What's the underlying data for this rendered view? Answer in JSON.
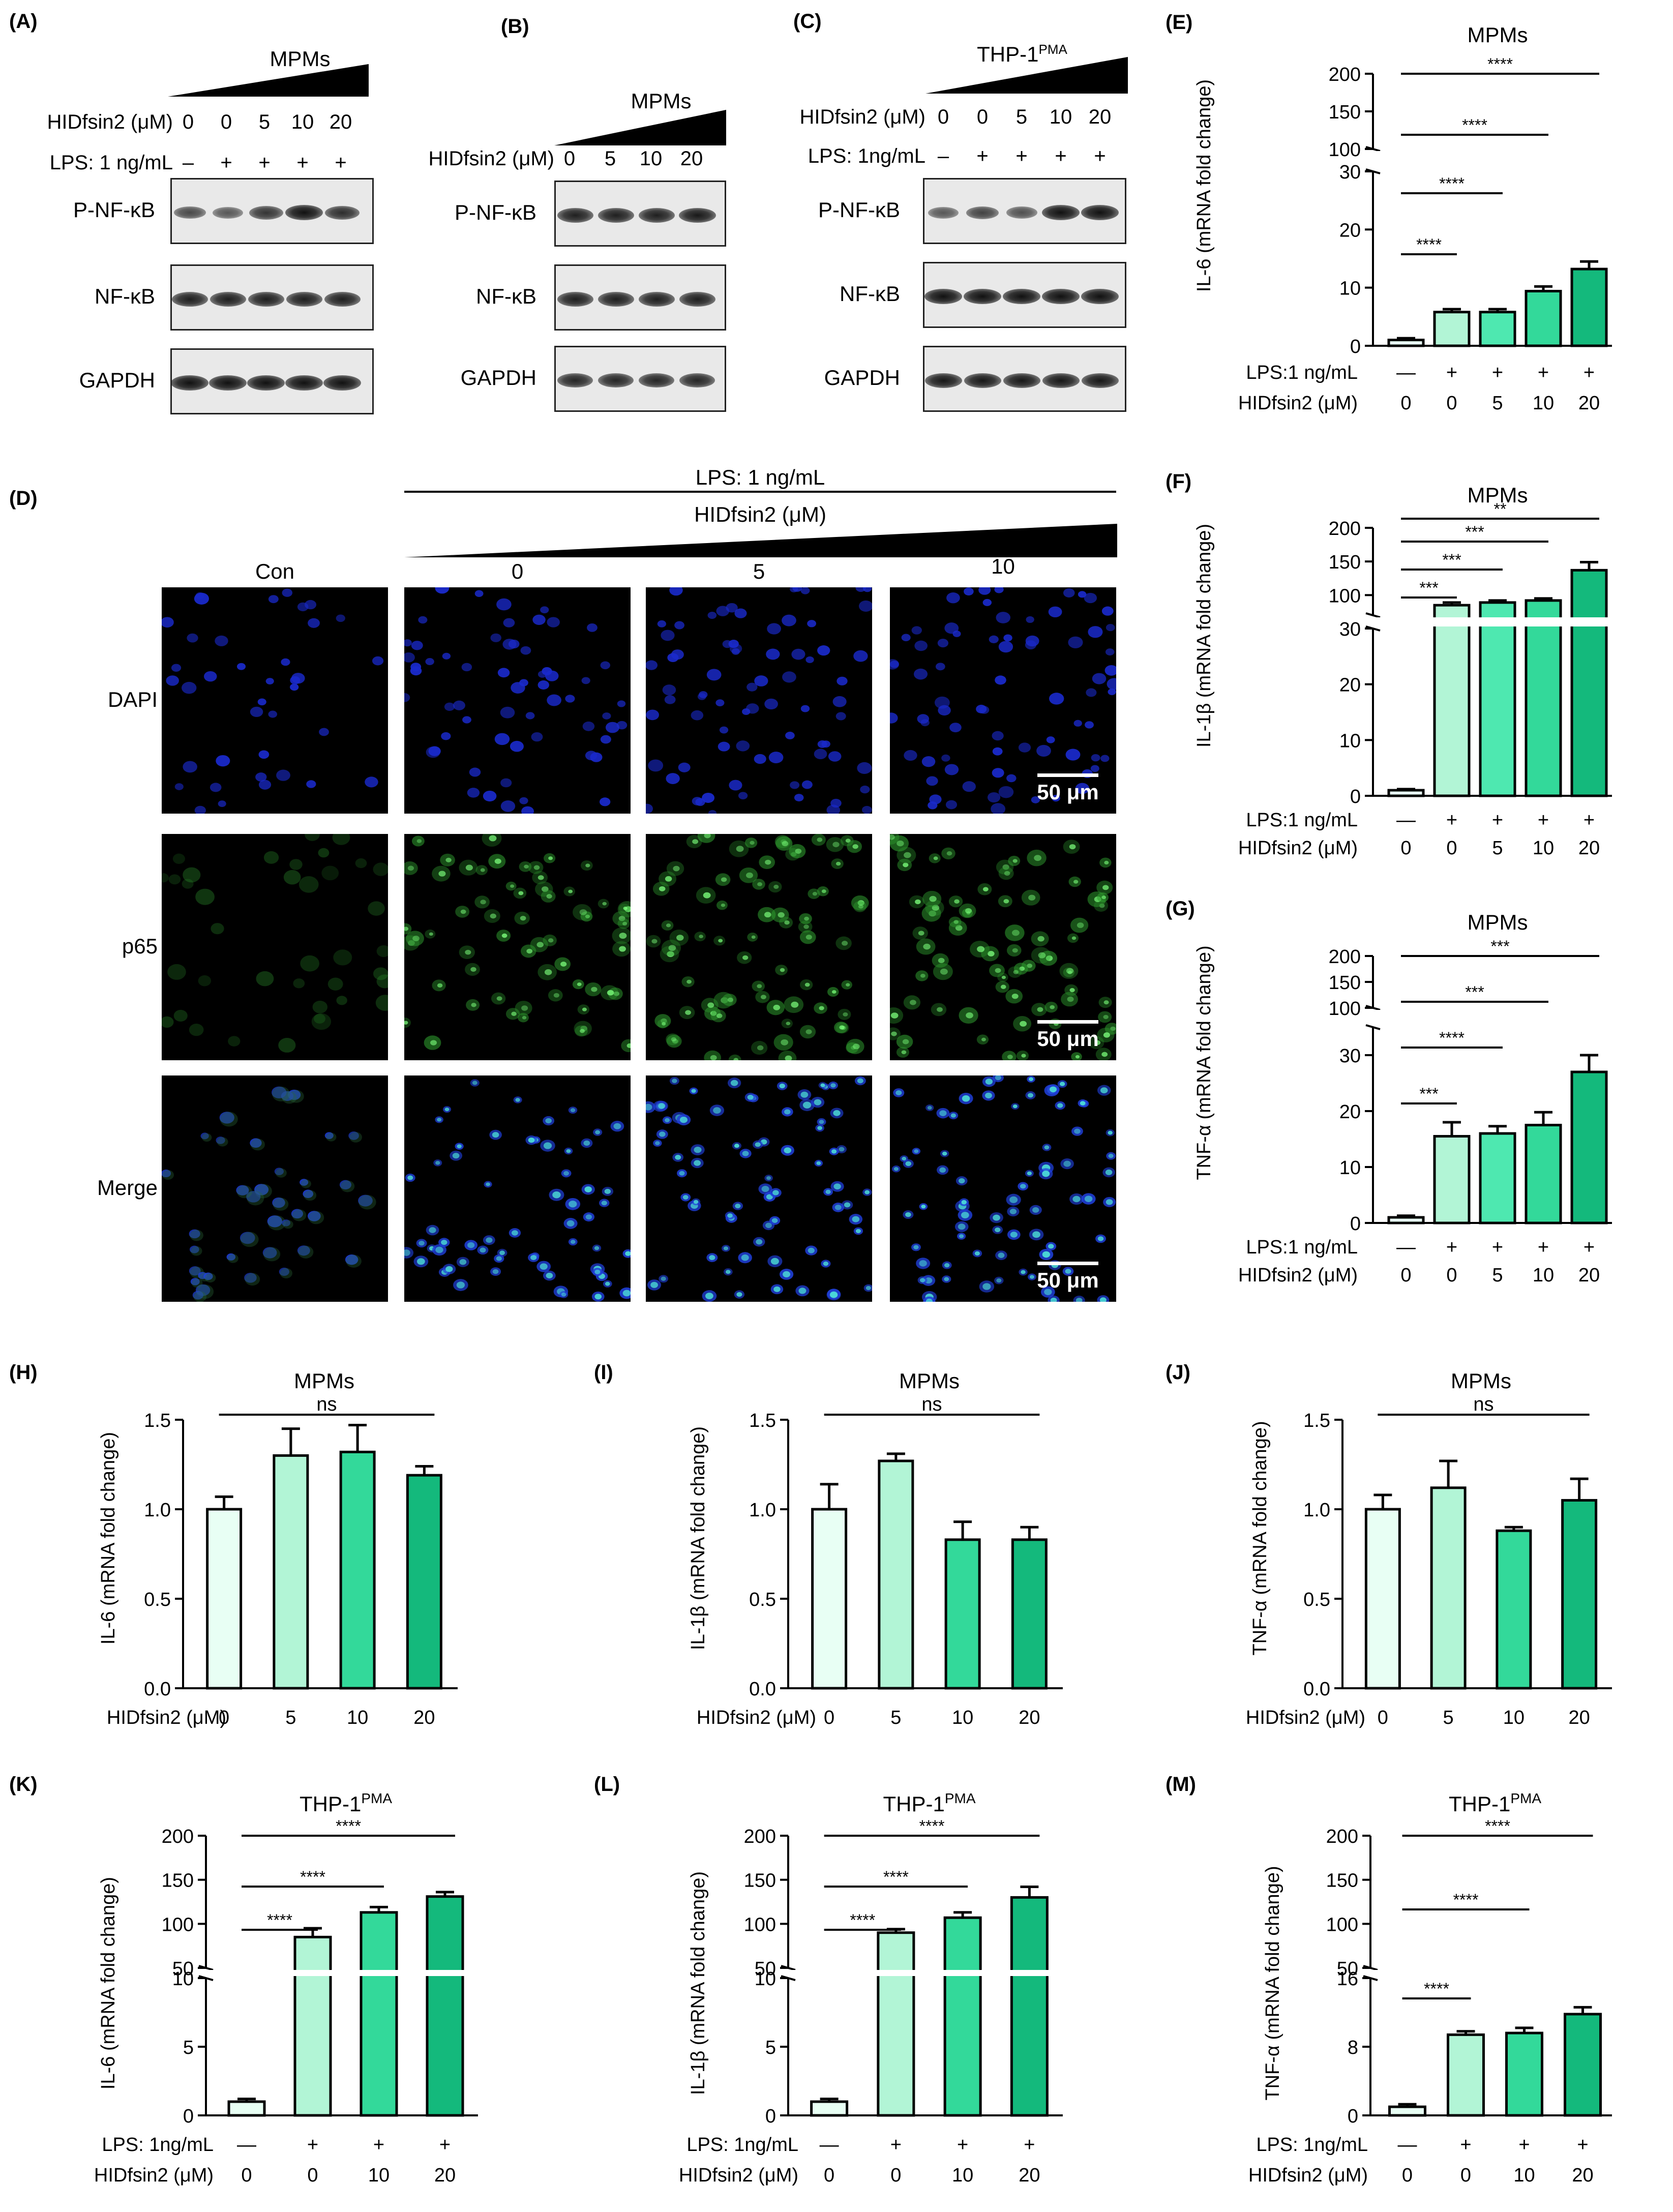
{
  "colors": {
    "c0": "#e8fff4",
    "c1": "#b2f5d6",
    "c2": "#4ee8b0",
    "c3": "#33d99a",
    "c4": "#14b97c",
    "c5": "#0fa56f"
  },
  "panelA": {
    "label": "(A)",
    "title": "MPMs",
    "row1_label": "HIDfsin2 (μM)",
    "row1_values": [
      "0",
      "0",
      "5",
      "10",
      "20"
    ],
    "row2_label": "LPS: 1 ng/mL",
    "row2_values": [
      "–",
      "+",
      "+",
      "+",
      "+"
    ],
    "blots": [
      {
        "name": "P-NF-κB",
        "intensity": [
          0.6,
          0.5,
          0.75,
          1.0,
          0.8
        ]
      },
      {
        "name": "NF-κB",
        "intensity": [
          0.9,
          0.9,
          0.9,
          0.9,
          0.9
        ]
      },
      {
        "name": "GAPDH",
        "intensity": [
          1,
          1,
          1,
          1,
          1
        ]
      }
    ]
  },
  "panelB": {
    "label": "(B)",
    "title": "MPMs",
    "row1_label": "HIDfsin2 (μM)",
    "row1_values": [
      "0",
      "5",
      "10",
      "20"
    ],
    "blots": [
      {
        "name": "P-NF-κB",
        "intensity": [
          0.9,
          0.9,
          0.9,
          0.95
        ]
      },
      {
        "name": "NF-κB",
        "intensity": [
          0.9,
          0.9,
          0.9,
          0.9
        ]
      },
      {
        "name": "GAPDH",
        "intensity": [
          0.85,
          0.85,
          0.85,
          0.85
        ]
      }
    ]
  },
  "panelC": {
    "label": "(C)",
    "title": "THP-1",
    "title_sup": "PMA",
    "row1_label": "HIDfsin2 (μM)",
    "row1_values": [
      "0",
      "0",
      "5",
      "10",
      "20"
    ],
    "row2_label": "LPS: 1ng/mL",
    "row2_values": [
      "–",
      "+",
      "+",
      "+",
      "+"
    ],
    "blots": [
      {
        "name": "P-NF-κB",
        "intensity": [
          0.5,
          0.65,
          0.55,
          1.0,
          1.0
        ]
      },
      {
        "name": "NF-κB",
        "intensity": [
          1,
          1,
          1,
          1,
          1
        ]
      },
      {
        "name": "GAPDH",
        "intensity": [
          0.95,
          0.95,
          0.95,
          0.95,
          0.95
        ]
      }
    ]
  },
  "panelD": {
    "label": "(D)",
    "lps_label": "LPS: 1 ng/mL",
    "hid_label": "HIDfsin2 (μM)",
    "columns": [
      "Con",
      "0",
      "5",
      "10"
    ],
    "rows": [
      "DAPI",
      "p65",
      "Merge"
    ],
    "scalebar": "50 μm"
  },
  "chart_data": [
    {
      "id": "E",
      "label": "(E)",
      "type": "bar",
      "title": "MPMs",
      "ylabel": "IL-6 (mRNA fold change)",
      "broken_axis": true,
      "lower_ylim": [
        0,
        30
      ],
      "lower_ticks": [
        0,
        10,
        20,
        30
      ],
      "upper_ylim": [
        100,
        200
      ],
      "upper_ticks": [
        100,
        150,
        200
      ],
      "row_labels": [
        "LPS:1 ng/mL",
        "HIDfsin2 (μM)"
      ],
      "rows": [
        [
          "—",
          "+",
          "+",
          "+",
          "+"
        ],
        [
          "0",
          "0",
          "5",
          "10",
          "20"
        ]
      ],
      "values": [
        1,
        5.8,
        5.8,
        9.4,
        13.2
      ],
      "errors": [
        0.3,
        0.5,
        0.5,
        0.8,
        1.3
      ],
      "significance": [
        {
          "from": 0,
          "to": 1,
          "text": "****"
        },
        {
          "from": 0,
          "to": 2,
          "text": "****"
        },
        {
          "from": 0,
          "to": 3,
          "text": "****"
        },
        {
          "from": 0,
          "to": 4,
          "text": "****"
        }
      ]
    },
    {
      "id": "F",
      "label": "(F)",
      "type": "bar",
      "title": "MPMs",
      "ylabel": "IL-1β (mRNA fold change)",
      "broken_axis": true,
      "lower_ylim": [
        0,
        30
      ],
      "lower_ticks": [
        0,
        10,
        20,
        30
      ],
      "upper_ylim": [
        70,
        200
      ],
      "upper_ticks": [
        100,
        150,
        200
      ],
      "row_labels": [
        "LPS:1 ng/mL",
        "HIDfsin2 (μM)"
      ],
      "rows": [
        [
          "—",
          "+",
          "+",
          "+",
          "+"
        ],
        [
          "0",
          "0",
          "5",
          "10",
          "20"
        ]
      ],
      "values": [
        1,
        85,
        89,
        92,
        137
      ],
      "errors": [
        0.2,
        4,
        3,
        3,
        12
      ],
      "significance": [
        {
          "from": 0,
          "to": 1,
          "text": "***"
        },
        {
          "from": 0,
          "to": 2,
          "text": "***"
        },
        {
          "from": 0,
          "to": 3,
          "text": "***"
        },
        {
          "from": 0,
          "to": 4,
          "text": "**"
        }
      ]
    },
    {
      "id": "G",
      "label": "(G)",
      "type": "bar",
      "title": "MPMs",
      "ylabel": "TNF-α (mRNA fold change)",
      "broken_axis": true,
      "lower_ylim": [
        0,
        35
      ],
      "lower_ticks": [
        0,
        10,
        20,
        30
      ],
      "upper_ylim": [
        100,
        200
      ],
      "upper_ticks": [
        100,
        150,
        200
      ],
      "row_labels": [
        "LPS:1 ng/mL",
        "HIDfsin2 (μM)"
      ],
      "rows": [
        [
          "—",
          "+",
          "+",
          "+",
          "+"
        ],
        [
          "0",
          "0",
          "5",
          "10",
          "20"
        ]
      ],
      "values": [
        1,
        15.5,
        16,
        17.5,
        27
      ],
      "errors": [
        0.3,
        2.5,
        1.3,
        2.3,
        3
      ],
      "significance": [
        {
          "from": 0,
          "to": 1,
          "text": "***"
        },
        {
          "from": 0,
          "to": 2,
          "text": "****"
        },
        {
          "from": 0,
          "to": 3,
          "text": "***"
        },
        {
          "from": 0,
          "to": 4,
          "text": "***"
        }
      ]
    },
    {
      "id": "H",
      "label": "(H)",
      "type": "bar",
      "title": "MPMs",
      "ylabel": "IL-6 (mRNA fold change)",
      "broken_axis": false,
      "ylim": [
        0,
        1.5
      ],
      "ticks": [
        "0.0",
        "0.5",
        "1.0",
        "1.5"
      ],
      "row_labels": [
        "HIDfsin2 (μM)"
      ],
      "rows": [
        [
          "0",
          "5",
          "10",
          "20"
        ]
      ],
      "values": [
        1.0,
        1.3,
        1.32,
        1.19
      ],
      "errors": [
        0.07,
        0.15,
        0.15,
        0.05
      ],
      "significance": [
        {
          "from": 0,
          "to": 3,
          "text": "ns"
        }
      ]
    },
    {
      "id": "I",
      "label": "(I)",
      "type": "bar",
      "title": "MPMs",
      "ylabel": "IL-1β (mRNA fold change)",
      "broken_axis": false,
      "ylim": [
        0,
        1.5
      ],
      "ticks": [
        "0.0",
        "0.5",
        "1.0",
        "1.5"
      ],
      "row_labels": [
        "HIDfsin2 (μM)"
      ],
      "rows": [
        [
          "0",
          "5",
          "10",
          "20"
        ]
      ],
      "values": [
        1.0,
        1.27,
        0.83,
        0.83
      ],
      "errors": [
        0.14,
        0.04,
        0.1,
        0.07
      ],
      "significance": [
        {
          "from": 0,
          "to": 3,
          "text": "ns"
        }
      ]
    },
    {
      "id": "J",
      "label": "(J)",
      "type": "bar",
      "title": "MPMs",
      "ylabel": "TNF-α (mRNA fold change)",
      "broken_axis": false,
      "ylim": [
        0,
        1.5
      ],
      "ticks": [
        "0.0",
        "0.5",
        "1.0",
        "1.5"
      ],
      "row_labels": [
        "HIDfsin2 (μM)"
      ],
      "rows": [
        [
          "0",
          "5",
          "10",
          "20"
        ]
      ],
      "values": [
        1.0,
        1.12,
        0.88,
        1.05
      ],
      "errors": [
        0.08,
        0.15,
        0.02,
        0.12
      ],
      "significance": [
        {
          "from": 0,
          "to": 3,
          "text": "ns"
        }
      ]
    },
    {
      "id": "K",
      "label": "(K)",
      "type": "bar",
      "title": "THP-1",
      "title_sup": "PMA",
      "ylabel": "IL-6 (mRNA fold change)",
      "broken_axis": true,
      "lower_ylim": [
        0,
        10
      ],
      "lower_ticks": [
        0,
        5,
        10
      ],
      "upper_ylim": [
        50,
        200
      ],
      "upper_ticks": [
        50,
        100,
        150,
        200
      ],
      "row_labels": [
        "LPS: 1ng/mL",
        "HIDfsin2 (μM)"
      ],
      "rows": [
        [
          "—",
          "+",
          "+",
          "+"
        ],
        [
          "0",
          "0",
          "10",
          "20"
        ]
      ],
      "values": [
        1,
        85,
        113,
        131
      ],
      "errors": [
        0.2,
        10,
        6,
        5
      ],
      "significance": [
        {
          "from": 0,
          "to": 1,
          "text": "****"
        },
        {
          "from": 0,
          "to": 2,
          "text": "****"
        },
        {
          "from": 0,
          "to": 3,
          "text": "****"
        }
      ]
    },
    {
      "id": "L",
      "label": "(L)",
      "type": "bar",
      "title": "THP-1",
      "title_sup": "PMA",
      "ylabel": "IL-1β (mRNA fold change)",
      "broken_axis": true,
      "lower_ylim": [
        0,
        10
      ],
      "lower_ticks": [
        0,
        5,
        10
      ],
      "upper_ylim": [
        50,
        200
      ],
      "upper_ticks": [
        50,
        100,
        150,
        200
      ],
      "row_labels": [
        "LPS: 1ng/mL",
        "HIDfsin2 (μM)"
      ],
      "rows": [
        [
          "—",
          "+",
          "+",
          "+"
        ],
        [
          "0",
          "0",
          "10",
          "20"
        ]
      ],
      "values": [
        1,
        90,
        107,
        130
      ],
      "errors": [
        0.2,
        4,
        6,
        12
      ],
      "significance": [
        {
          "from": 0,
          "to": 1,
          "text": "****"
        },
        {
          "from": 0,
          "to": 2,
          "text": "****"
        },
        {
          "from": 0,
          "to": 3,
          "text": "****"
        }
      ]
    },
    {
      "id": "M",
      "label": "(M)",
      "type": "bar",
      "title": "THP-1",
      "title_sup": "PMA",
      "ylabel": "TNF-α (mRNA fold change)",
      "broken_axis": true,
      "lower_ylim": [
        0,
        16
      ],
      "lower_ticks": [
        0,
        8,
        16
      ],
      "upper_ylim": [
        50,
        200
      ],
      "upper_ticks": [
        50,
        100,
        150,
        200
      ],
      "row_labels": [
        "LPS: 1ng/mL",
        "HIDfsin2 (μM)"
      ],
      "rows": [
        [
          "—",
          "+",
          "+",
          "+"
        ],
        [
          "0",
          "0",
          "10",
          "20"
        ]
      ],
      "values": [
        1,
        9.4,
        9.6,
        11.8
      ],
      "errors": [
        0.3,
        0.4,
        0.6,
        0.8
      ],
      "significance": [
        {
          "from": 0,
          "to": 1,
          "text": "****"
        },
        {
          "from": 0,
          "to": 2,
          "text": "****"
        },
        {
          "from": 0,
          "to": 3,
          "text": "****"
        }
      ]
    }
  ]
}
